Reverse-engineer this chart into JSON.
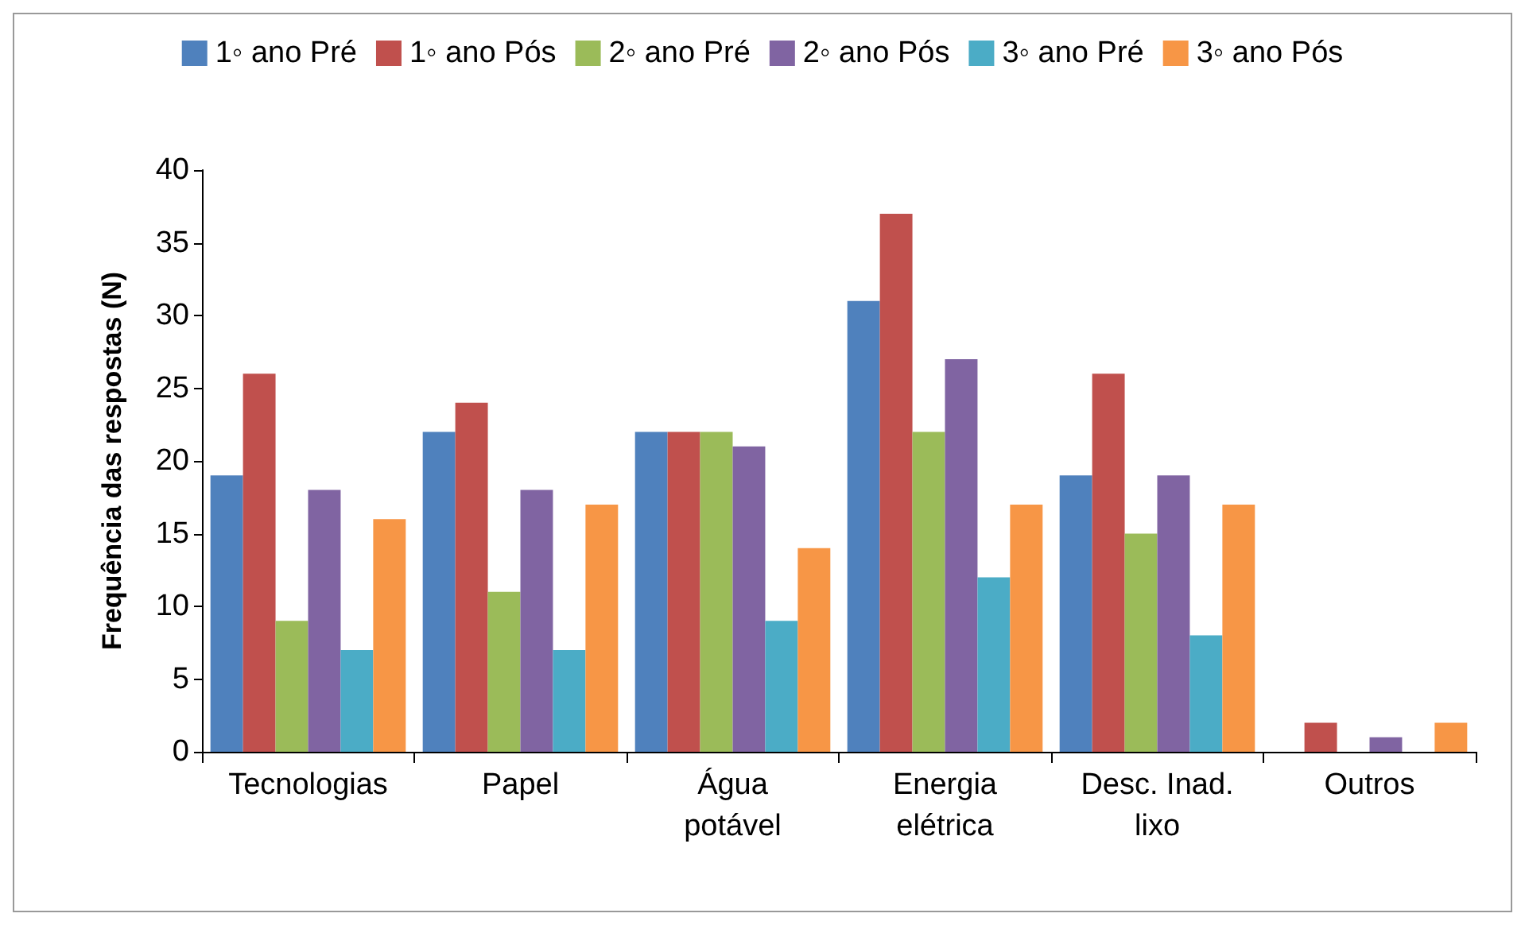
{
  "chart_data": {
    "type": "bar",
    "ylabel": "Frequência das respostas (N)",
    "categories": [
      "Tecnologias",
      "Papel",
      "Água\npotável",
      "Energia\nelétrica",
      "Desc. Inad.\nlixo",
      "Outros"
    ],
    "series": [
      {
        "name": "1◦ ano Pré",
        "color": "#4f81bd",
        "values": [
          19,
          22,
          22,
          31,
          19,
          0
        ]
      },
      {
        "name": "1◦ ano Pós",
        "color": "#c0504d",
        "values": [
          26,
          24,
          22,
          37,
          26,
          2
        ]
      },
      {
        "name": "2◦ ano Pré",
        "color": "#9bbb59",
        "values": [
          9,
          11,
          22,
          22,
          15,
          0
        ]
      },
      {
        "name": "2◦ ano Pós",
        "color": "#8064a2",
        "values": [
          18,
          18,
          21,
          27,
          19,
          1
        ]
      },
      {
        "name": "3◦ ano Pré",
        "color": "#4bacc6",
        "values": [
          7,
          7,
          9,
          12,
          8,
          0
        ]
      },
      {
        "name": "3◦ ano Pós",
        "color": "#f79646",
        "values": [
          16,
          17,
          14,
          17,
          17,
          2
        ]
      }
    ],
    "ylim": [
      0,
      40
    ],
    "yticks": [
      0,
      5,
      10,
      15,
      20,
      25,
      30,
      35,
      40
    ],
    "grid": false,
    "legend": "top"
  }
}
